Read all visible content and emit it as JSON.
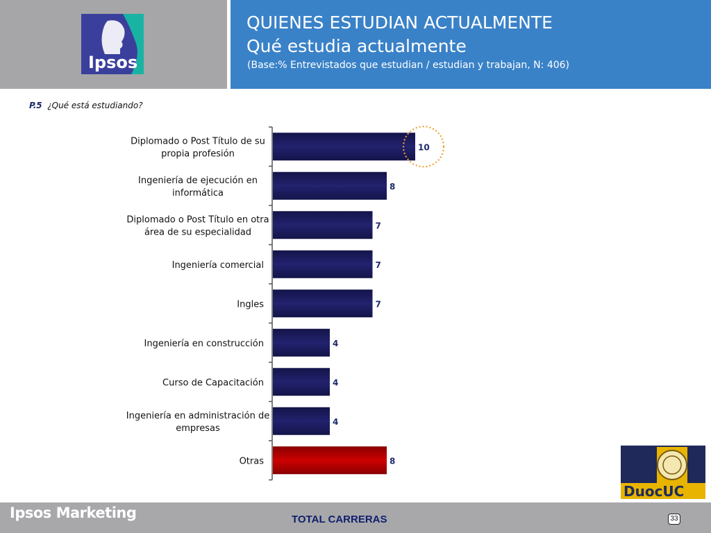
{
  "header": {
    "logo_text": "Ipsos",
    "title": "QUIENES ESTUDIAN ACTUALMENTE",
    "subtitle": "Qué estudia actualmente",
    "base_note": "(Base:% Entrevistados que  estudian / estudian y trabajan, N: 406)"
  },
  "question": {
    "code": "P.5",
    "text": "¿Qué está estudiando?"
  },
  "colors": {
    "bar_main": "#22226e",
    "bar_highlight": "#cc0000",
    "header_blue": "#3a82c8",
    "header_gray": "#a6a6a8",
    "highlight_circle": "#f0a030"
  },
  "chart_data": {
    "type": "bar",
    "orientation": "horizontal",
    "categories": [
      [
        "Diplomado o Post Título de su",
        "propia profesión"
      ],
      [
        "Ingeniería de ejecución en",
        "informática"
      ],
      [
        "Diplomado o Post Título en otra",
        "área de su especialidad"
      ],
      [
        "Ingeniería comercial"
      ],
      [
        "Ingles"
      ],
      [
        "Ingeniería en construcción"
      ],
      [
        "Curso de Capacitación"
      ],
      [
        "Ingeniería en administración de",
        "empresas"
      ],
      [
        "Otras"
      ]
    ],
    "values": [
      10,
      8,
      7,
      7,
      7,
      4,
      4,
      4,
      8
    ],
    "highlighted_category_index": 8,
    "circled_value_index": 0,
    "data_labels": [
      "10",
      "8",
      "7",
      "7",
      "7",
      "4",
      "4",
      "4",
      "8"
    ],
    "xlim": [
      0,
      10
    ],
    "grid": false,
    "legend": "none"
  },
  "footer": {
    "brand": "Ipsos Marketing",
    "total_label": "TOTAL CARRERAS",
    "page_number": "33",
    "partner_logo_text": "DuocUC"
  }
}
